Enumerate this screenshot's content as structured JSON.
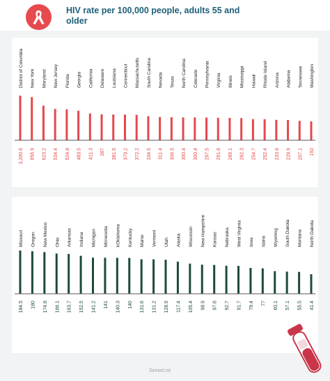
{
  "header": {
    "title": "HIV rate per 100,000 people, adults 55 and older",
    "logo_icon": "red-ribbon-icon"
  },
  "footer": {
    "brand": "SeniorList",
    "illustration_icon": "blood-sample-tube-icon"
  },
  "colors": {
    "top_bars": "#e6474b",
    "bottom_bars": "#1d4a3d",
    "title": "#1e5f79",
    "background": "#f1f3f4"
  },
  "chart_data": [
    {
      "type": "bar",
      "categories": [
        "District of Columbia",
        "New York",
        "Maryland",
        "New Jersey",
        "Florida",
        "Georgia",
        "California",
        "Delaware",
        "Louisiana",
        "Connecticut",
        "Massachusetts",
        "South Carolina",
        "Nevada",
        "Texas",
        "North Carolina",
        "Colorado",
        "Pennsylvania",
        "Virginia",
        "Illinois",
        "Mississippi",
        "Hawaii",
        "Rhode Island",
        "Arizona",
        "Alabama",
        "Tennessee",
        "Washington"
      ],
      "values": [
        3200.6,
        856.9,
        623.2,
        534.4,
        524.8,
        483.5,
        411.3,
        387,
        381.5,
        379.2,
        372.2,
        334.5,
        311.4,
        306.5,
        300.4,
        300.4,
        297.5,
        291.8,
        289.1,
        282.3,
        254.7,
        252.4,
        233.8,
        229.9,
        207.1,
        192
      ],
      "value_labels": [
        "3,200.6",
        "856.9",
        "623.2",
        "534.4",
        "524.8",
        "483.5",
        "411.3",
        "387",
        "381.5",
        "379.2",
        "372.2",
        "334.5",
        "311.4",
        "306.5",
        "300.4",
        "300.4",
        "297.5",
        "291.8",
        "289.1",
        "282.3",
        "254.7",
        "252.4",
        "233.8",
        "229.9",
        "207.1",
        "192"
      ],
      "color": "#e6474b"
    },
    {
      "type": "bar",
      "categories": [
        "Missouri",
        "Oregon",
        "New Mexico",
        "Ohio",
        "Arkansas",
        "Indiana",
        "Michigan",
        "Minnesota",
        "kOklahoma",
        "Kentucky",
        "Maine",
        "Vermont",
        "Utah",
        "Alaska",
        "Wisconsin",
        "New Hampshire",
        "Kansas",
        "Nebraska",
        "West Virginia",
        "Iowa",
        "Idaho",
        "Wyoming",
        "South Dakota",
        "Montana",
        "North Dakota"
      ],
      "values": [
        184.5,
        180,
        174.8,
        166.1,
        163.7,
        152.5,
        141.2,
        141,
        140.3,
        140,
        131.6,
        131.2,
        128.9,
        117.4,
        105.4,
        98.9,
        97.6,
        92.7,
        91.7,
        79.4,
        77,
        60.1,
        57.1,
        55.5,
        41.4
      ],
      "value_labels": [
        "184.5",
        "180",
        "174.8",
        "166.1",
        "163.7",
        "152.5",
        "141.2",
        "141",
        "140.3",
        "140",
        "131.6",
        "131.2",
        "128.9",
        "117.4",
        "105.4",
        "98.9",
        "97.6",
        "92.7",
        "91.7",
        "79.4",
        "77",
        "60,1",
        "57.1",
        "55.5",
        "41.4"
      ],
      "color": "#1d4a3d"
    }
  ]
}
